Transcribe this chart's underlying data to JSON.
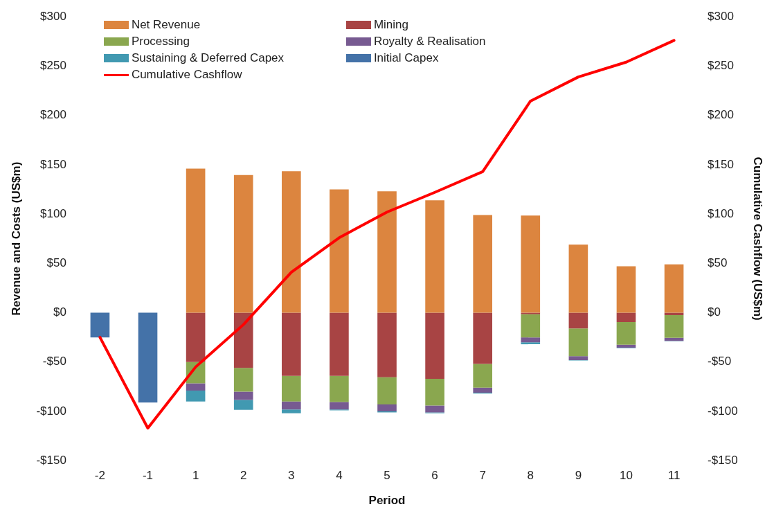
{
  "chart_data": {
    "type": "bar",
    "stacked": true,
    "xlabel": "Period",
    "ylabel": "Revenue and Costs (US$m)",
    "y2label": "Cumulative Cashflow (US$m)",
    "categories": [
      "-2",
      "-1",
      "1",
      "2",
      "3",
      "4",
      "5",
      "6",
      "7",
      "8",
      "9",
      "10",
      "11"
    ],
    "series": [
      {
        "name": "Net Revenue",
        "color": "#dc853f",
        "values": [
          null,
          null,
          146,
          139.5,
          143.5,
          125,
          123,
          114,
          99,
          98.5,
          69,
          47,
          49
        ]
      },
      {
        "name": "Mining",
        "color": "#a84444",
        "values": [
          null,
          null,
          -50,
          -56,
          -64,
          -64,
          -65.5,
          -67,
          -52,
          -1.5,
          -16,
          -9.5,
          -2.5
        ]
      },
      {
        "name": "Processing",
        "color": "#8aa74f",
        "values": [
          null,
          null,
          -21.5,
          -24,
          -26,
          -26.5,
          -27.5,
          -27,
          -24,
          -23.5,
          -28,
          -23,
          -23
        ]
      },
      {
        "name": "Royalty & Realisation",
        "color": "#775a91",
        "values": [
          null,
          null,
          -7.5,
          -8.5,
          -8,
          -7.5,
          -7,
          -7,
          -5,
          -5,
          -4,
          -3,
          -3
        ]
      },
      {
        "name": "Sustaining & Deferred Capex",
        "color": "#4199b1",
        "values": [
          null,
          null,
          -11,
          -10,
          -4,
          -1,
          -1,
          -1,
          -1,
          -2,
          -0.5,
          -0.5,
          -0.5
        ]
      },
      {
        "name": "Initial Capex",
        "color": "#4472a8",
        "values": [
          -25,
          -91,
          null,
          null,
          null,
          null,
          null,
          null,
          null,
          null,
          null,
          null,
          null
        ]
      },
      {
        "name": "Cumulative Cashflow",
        "type": "line",
        "axis": "y2",
        "color": "#ff0000",
        "values": [
          -25,
          -117,
          -55,
          -12,
          41,
          76,
          102,
          122,
          143,
          214.5,
          239,
          254,
          276
        ]
      }
    ],
    "ylim": [
      -150,
      300
    ],
    "yticks": [
      {
        "value": -150,
        "label": "-$150"
      },
      {
        "value": -100,
        "label": "-$100"
      },
      {
        "value": -50,
        "label": "-$50"
      },
      {
        "value": 0,
        "label": "$0"
      },
      {
        "value": 50,
        "label": "$50"
      },
      {
        "value": 100,
        "label": "$100"
      },
      {
        "value": 150,
        "label": "$150"
      },
      {
        "value": 200,
        "label": "$200"
      },
      {
        "value": 250,
        "label": "$250"
      },
      {
        "value": 300,
        "label": "$300"
      }
    ],
    "y2lim": [
      -150,
      300
    ],
    "y2ticks": [
      {
        "value": -150,
        "label": "-$150"
      },
      {
        "value": -100,
        "label": "-$100"
      },
      {
        "value": -50,
        "label": "-$50"
      },
      {
        "value": 0,
        "label": "$0"
      },
      {
        "value": 50,
        "label": "$50"
      },
      {
        "value": 100,
        "label": "$100"
      },
      {
        "value": 150,
        "label": "$150"
      },
      {
        "value": 200,
        "label": "$200"
      },
      {
        "value": 250,
        "label": "$250"
      },
      {
        "value": 300,
        "label": "$300"
      }
    ],
    "legend": "top left",
    "marker": "none",
    "line_style": "solid"
  }
}
